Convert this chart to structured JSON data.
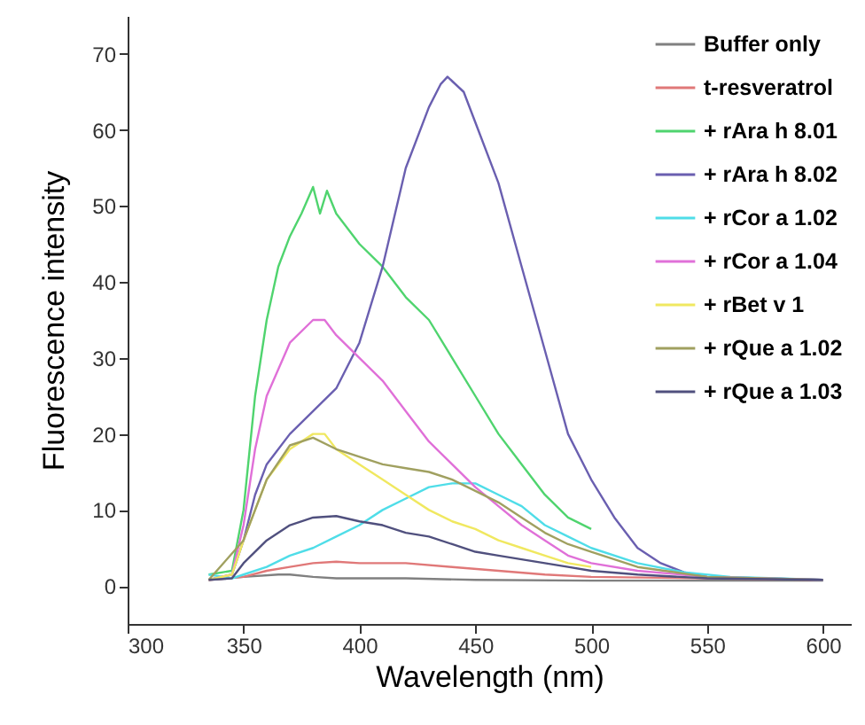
{
  "chart_data": {
    "type": "line",
    "xlabel": "Wavelength (nm)",
    "ylabel": "Fluorescence intensity",
    "xlim": [
      300,
      612
    ],
    "ylim": [
      -5,
      75
    ],
    "xticks": [
      300,
      350,
      400,
      450,
      500,
      550,
      600
    ],
    "yticks": [
      0,
      10,
      20,
      30,
      40,
      50,
      60,
      70
    ],
    "legend": "top right",
    "series": [
      {
        "name": "Buffer only",
        "color": "#808080",
        "x": [
          335,
          350,
          365,
          370,
          380,
          390,
          420,
          450,
          500,
          550,
          600
        ],
        "values": [
          0.8,
          1.2,
          1.5,
          1.5,
          1.2,
          1,
          1,
          0.8,
          0.7,
          0.7,
          0.7
        ]
      },
      {
        "name": "t-resveratrol",
        "color": "#e07878",
        "x": [
          335,
          350,
          360,
          370,
          380,
          390,
          400,
          420,
          440,
          460,
          480,
          500,
          550,
          600
        ],
        "values": [
          0.8,
          1.2,
          2,
          2.5,
          3,
          3.2,
          3,
          3,
          2.5,
          2,
          1.5,
          1.2,
          1,
          0.8
        ]
      },
      {
        "name": "+ rAra h 8.01",
        "color": "#4fd46e",
        "x": [
          335,
          345,
          350,
          355,
          360,
          365,
          370,
          375,
          380,
          383,
          386,
          390,
          400,
          410,
          420,
          430,
          440,
          450,
          460,
          470,
          480,
          490,
          500
        ],
        "values": [
          1.5,
          2,
          10,
          25,
          35,
          42,
          46,
          49,
          52.5,
          49,
          52,
          49,
          45,
          42,
          38,
          35,
          30,
          25,
          20,
          16,
          12,
          9,
          7.5
        ]
      },
      {
        "name": "+ rAra h 8.02",
        "color": "#6a5fb0",
        "x": [
          335,
          345,
          350,
          355,
          360,
          370,
          380,
          390,
          400,
          410,
          420,
          430,
          435,
          438,
          445,
          450,
          460,
          470,
          480,
          490,
          500,
          510,
          520,
          530,
          540,
          550,
          575,
          600
        ],
        "values": [
          0.8,
          1.5,
          6,
          12,
          16,
          20,
          23,
          26,
          32,
          42,
          55,
          63,
          66,
          67,
          65,
          61,
          53,
          42,
          31,
          20,
          14,
          9,
          5,
          3,
          1.8,
          1.2,
          1,
          0.8
        ]
      },
      {
        "name": "+ rCor a 1.02",
        "color": "#4fdde8",
        "x": [
          335,
          345,
          350,
          360,
          370,
          380,
          390,
          400,
          410,
          420,
          430,
          440,
          450,
          460,
          470,
          480,
          490,
          500,
          520,
          540,
          560,
          580,
          600
        ],
        "values": [
          1.5,
          1,
          1.5,
          2.5,
          4,
          5,
          6.5,
          8,
          10,
          11.5,
          13,
          13.5,
          13.5,
          12,
          10.5,
          8,
          6.5,
          5,
          3,
          1.8,
          1.2,
          1,
          0.8
        ]
      },
      {
        "name": "+ rCor a 1.04",
        "color": "#e070d8",
        "x": [
          335,
          345,
          350,
          355,
          360,
          370,
          380,
          385,
          390,
          400,
          410,
          420,
          430,
          440,
          450,
          460,
          470,
          480,
          490,
          500,
          520,
          550,
          600
        ],
        "values": [
          0.8,
          1.5,
          8,
          18,
          25,
          32,
          35,
          35,
          33,
          30,
          27,
          23,
          19,
          16,
          13,
          10.5,
          8,
          6,
          4,
          3,
          2,
          1.2,
          0.8
        ]
      },
      {
        "name": "+ rBet v 1",
        "color": "#f0e860",
        "x": [
          335,
          345,
          350,
          360,
          370,
          380,
          385,
          390,
          400,
          410,
          420,
          430,
          440,
          450,
          460,
          470,
          480,
          490,
          500
        ],
        "values": [
          0.8,
          1.5,
          6,
          14,
          18,
          20,
          20,
          18,
          16,
          14,
          12,
          10,
          8.5,
          7.5,
          6,
          5,
          4,
          3,
          2.5
        ]
      },
      {
        "name": "+ rQue a 1.02",
        "color": "#a0a060",
        "x": [
          335,
          350,
          360,
          370,
          380,
          390,
          400,
          410,
          420,
          430,
          440,
          450,
          460,
          470,
          480,
          490,
          500,
          520,
          550,
          600
        ],
        "values": [
          0.8,
          6,
          14,
          18.5,
          19.5,
          18,
          17,
          16,
          15.5,
          15,
          14,
          12.5,
          11,
          9,
          7,
          5.5,
          4.5,
          2.5,
          1.2,
          0.8
        ]
      },
      {
        "name": "+ rQue a 1.03",
        "color": "#50507e",
        "x": [
          335,
          345,
          350,
          360,
          370,
          380,
          390,
          400,
          410,
          420,
          430,
          440,
          450,
          460,
          470,
          480,
          490,
          500,
          520,
          550,
          600
        ],
        "values": [
          0.8,
          1,
          3,
          6,
          8,
          9,
          9.2,
          8.5,
          8,
          7,
          6.5,
          5.5,
          4.5,
          4,
          3.5,
          3,
          2.5,
          2,
          1.5,
          1,
          0.8
        ]
      }
    ]
  }
}
